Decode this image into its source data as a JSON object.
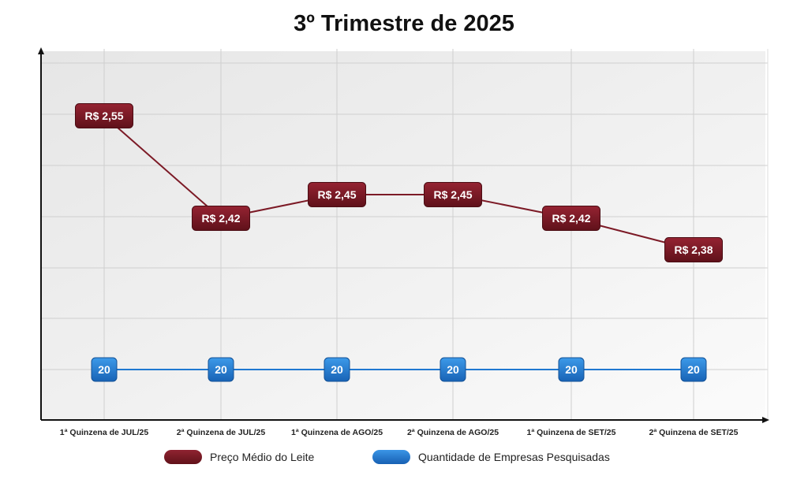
{
  "chart_data": {
    "type": "line",
    "title": "3º Trimestre de 2025",
    "categories": [
      "1ª Quinzena de JUL/25",
      "2ª Quinzena de JUL/25",
      "1ª Quinzena de AGO/25",
      "2ª Quinzena de AGO/25",
      "1ª Quinzena de SET/25",
      "2ª Quinzena de SET/25"
    ],
    "series": [
      {
        "name": "Preço Médio do Leite",
        "color": "#7c1a26",
        "values": [
          2.55,
          2.42,
          2.45,
          2.45,
          2.42,
          2.38
        ],
        "labels": [
          "R$ 2,55",
          "R$ 2,42",
          "R$ 2,45",
          "R$ 2,45",
          "R$ 2,42",
          "R$ 2,38"
        ]
      },
      {
        "name": "Quantidade de Empresas Pesquisadas",
        "color": "#1f78d1",
        "values": [
          20,
          20,
          20,
          20,
          20,
          20
        ],
        "labels": [
          "20",
          "20",
          "20",
          "20",
          "20",
          "20"
        ]
      }
    ],
    "grid": true,
    "legend_position": "bottom"
  }
}
